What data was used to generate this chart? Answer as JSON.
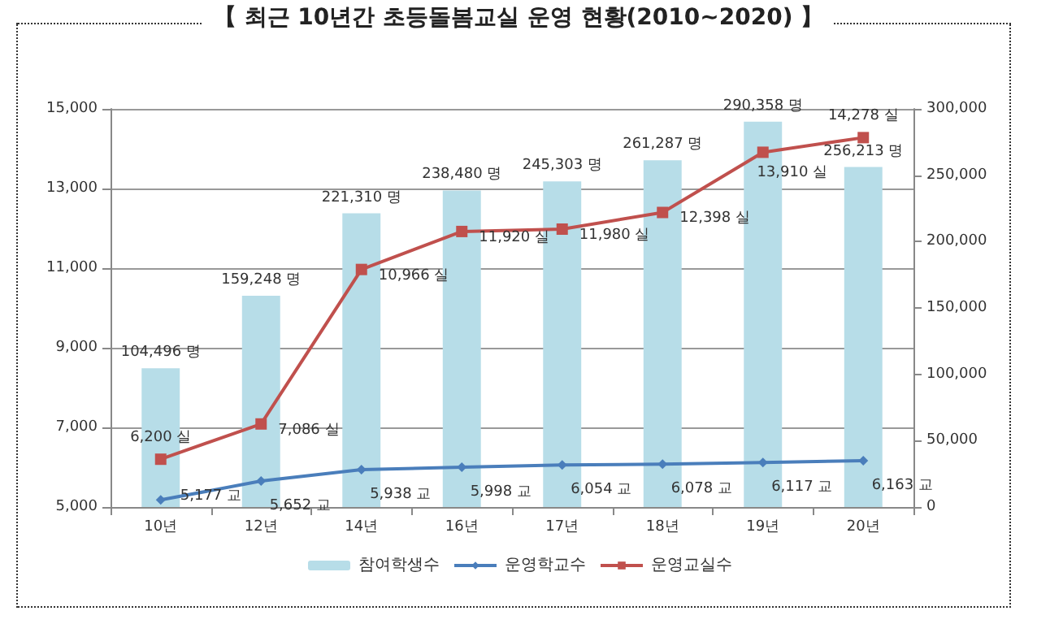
{
  "chart_data": {
    "type": "bar",
    "title": "【 최근 10년간 초등돌봄교실 운영 현황(2010~2020) 】",
    "categories": [
      "10년",
      "12년",
      "14년",
      "16년",
      "17년",
      "18년",
      "19년",
      "20년"
    ],
    "series": [
      {
        "name": "참여학생수",
        "axis": "y2",
        "color": "#b7dde8",
        "values": [
          104496,
          159248,
          221310,
          238480,
          245303,
          261287,
          290358,
          256213
        ],
        "value_labels": [
          "104,496 명",
          "159,248 명",
          "221,310 명",
          "238,480 명",
          "245,303 명",
          "261,287 명",
          "290,358 명",
          "256,213 명"
        ]
      },
      {
        "name": "운영학교수",
        "type": "line",
        "axis": "y",
        "color": "#4a7ebb",
        "marker": "diamond",
        "values": [
          5177,
          5652,
          5938,
          5998,
          6054,
          6078,
          6117,
          6163
        ],
        "value_labels": [
          "5,177 교",
          "5,652 교",
          "5,938 교",
          "5,998 교",
          "6,054 교",
          "6,078 교",
          "6,117 교",
          "6,163 교"
        ]
      },
      {
        "name": "운영교실수",
        "type": "line",
        "axis": "y",
        "color": "#c0504d",
        "marker": "square",
        "values": [
          6200,
          7086,
          10966,
          11920,
          11980,
          12398,
          13910,
          14278
        ],
        "value_labels": [
          "6,200 실",
          "7,086 실",
          "10,966 실",
          "11,920 실",
          "11,980 실",
          "12,398 실",
          "13,910 실",
          "14,278 실"
        ]
      }
    ],
    "ylim": [
      5000,
      15000
    ],
    "yticks": [
      {
        "value": 5000,
        "label": "5,000"
      },
      {
        "value": 7000,
        "label": "7,000"
      },
      {
        "value": 9000,
        "label": "9,000"
      },
      {
        "value": 11000,
        "label": "11,000"
      },
      {
        "value": 13000,
        "label": "13,000"
      },
      {
        "value": 15000,
        "label": "15,000"
      }
    ],
    "y2lim": [
      0,
      300000
    ],
    "y2ticks": [
      0,
      {
        "value": 50000,
        "label": "50,000"
      },
      {
        "value": 100000,
        "label": "100,000"
      },
      {
        "value": 150000,
        "label": "150,000"
      },
      {
        "value": 200000,
        "label": "200,000"
      },
      {
        "value": 250000,
        "label": "250,000"
      },
      {
        "value": 300000,
        "label": "300,000"
      }
    ],
    "grid": "y",
    "legend": "bottom"
  }
}
